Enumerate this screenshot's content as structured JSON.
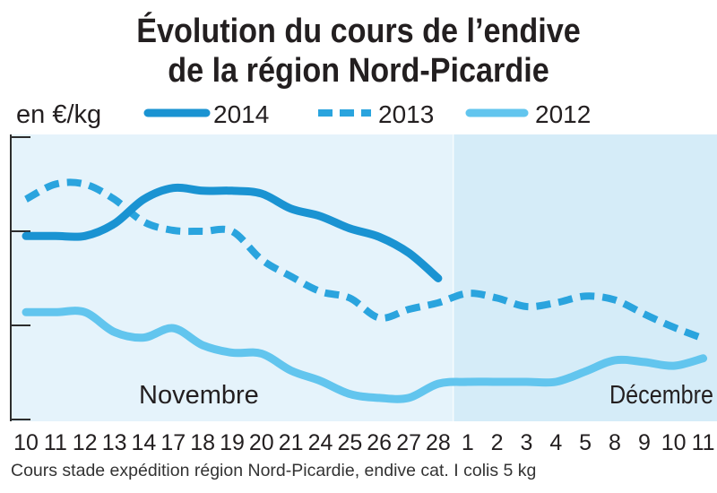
{
  "chart_data": {
    "type": "line",
    "title": [
      "Évolution du cours de l’endive",
      "de la région Nord-Picardie"
    ],
    "ylabel": "en €/kg",
    "ylim": [
      0,
      3
    ],
    "yticks": [
      0,
      1,
      2,
      3
    ],
    "x_axis": {
      "groups": [
        {
          "month": "Novembre",
          "shade": "#e5f3fb",
          "days": [
            "10",
            "11",
            "12",
            "13",
            "14",
            "17",
            "18",
            "19",
            "20",
            "21",
            "24",
            "25",
            "26",
            "27",
            "28"
          ]
        },
        {
          "month": "Décembre",
          "shade": "#d5ecf8",
          "days": [
            "1",
            "2",
            "3",
            "4",
            "5",
            "8",
            "9",
            "10",
            "11"
          ]
        }
      ]
    },
    "series": [
      {
        "name": "2014",
        "color": "#1a93d2",
        "dashed": false,
        "values": [
          1.95,
          1.95,
          1.95,
          2.08,
          2.34,
          2.46,
          2.43,
          2.43,
          2.4,
          2.24,
          2.16,
          2.03,
          1.94,
          1.77,
          1.5
        ]
      },
      {
        "name": "2013",
        "color": "#2aa4de",
        "dashed": true,
        "values": [
          2.34,
          2.5,
          2.5,
          2.34,
          2.1,
          2.01,
          2.0,
          2.0,
          1.7,
          1.52,
          1.36,
          1.29,
          1.08,
          1.17,
          1.24,
          1.34,
          1.29,
          1.2,
          1.24,
          1.31,
          1.27,
          1.12,
          0.98,
          0.86
        ]
      },
      {
        "name": "2012",
        "color": "#62c5ee",
        "dashed": false,
        "values": [
          1.14,
          1.14,
          1.14,
          0.93,
          0.87,
          0.97,
          0.79,
          0.71,
          0.7,
          0.52,
          0.41,
          0.27,
          0.23,
          0.23,
          0.38,
          0.4,
          0.4,
          0.4,
          0.4,
          0.51,
          0.63,
          0.61,
          0.57,
          0.65
        ]
      }
    ],
    "legend": "top",
    "grid": false,
    "footnote": "Cours stade expédition région Nord-Picardie, endive cat. I colis 5 kg"
  }
}
